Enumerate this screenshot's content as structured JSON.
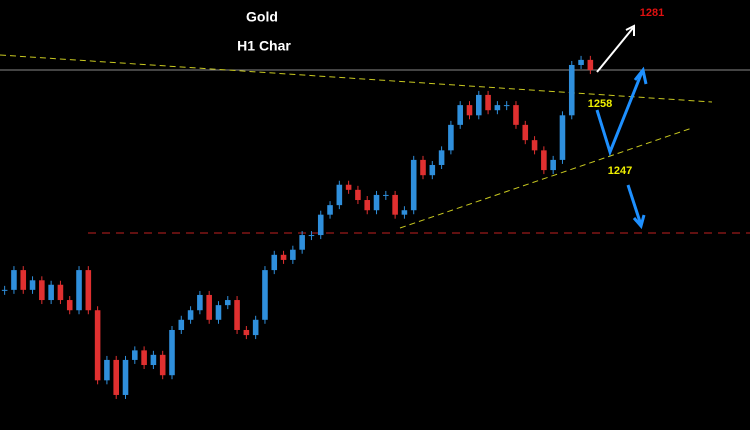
{
  "chart_data": {
    "type": "candlestick",
    "title": "Gold",
    "subtitle": "H1 Char",
    "values": [
      1228.2,
      1231.3,
      1228.2,
      1229.7,
      1226.6,
      1229.0,
      1226.6,
      1225.0,
      1231.3,
      1225.0,
      1214.0,
      1217.2,
      1211.7,
      1217.2,
      1218.7,
      1216.4,
      1218.0,
      1214.8,
      1221.9,
      1223.5,
      1225.0,
      1227.4,
      1223.5,
      1225.8,
      1226.6,
      1221.9,
      1221.1,
      1223.5,
      1231.3,
      1233.7,
      1232.9,
      1234.5,
      1236.8,
      1236.8,
      1240.0,
      1241.5,
      1244.7,
      1243.9,
      1242.3,
      1240.7,
      1243.1,
      1243.1,
      1240.0,
      1240.7,
      1248.6,
      1246.2,
      1247.8,
      1250.1,
      1254.1,
      1257.2,
      1255.6,
      1258.8,
      1256.4,
      1257.2,
      1257.2,
      1254.1,
      1251.7,
      1250.1,
      1247.0,
      1248.6,
      1255.6,
      1263.5,
      1264.3,
      1262.7
    ],
    "up_color": "#2f8fdc",
    "down_color": "#e03030",
    "ylim": [
      1206.2,
      1273.7
    ],
    "levels": [
      1281,
      1258,
      1247
    ]
  }
}
